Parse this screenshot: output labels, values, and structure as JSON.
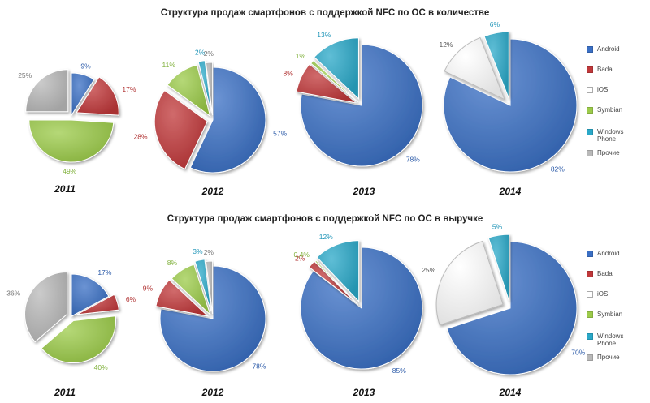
{
  "colors": {
    "Android": "#3a6fc4",
    "Bada": "#c0383a",
    "iOS": "#ffffff",
    "Symbian": "#9ccb4a",
    "Windows Phone": "#2aa8c8",
    "Прочие": "#b9b9b9"
  },
  "legend": {
    "title": "",
    "items": [
      "Android",
      "Bada",
      "iOS",
      "Symbian",
      "Windows Phone",
      "Прочие"
    ]
  },
  "chart_data": [
    {
      "type": "pie",
      "title": "Структура продаж смартфонов с поддержкой NFC по ОС в количестве",
      "pies": [
        {
          "year": "2011",
          "slices": [
            {
              "name": "Android",
              "value": 9,
              "label": "9%"
            },
            {
              "name": "Bada",
              "value": 17,
              "label": "17%"
            },
            {
              "name": "Symbian",
              "value": 49,
              "label": "49%"
            },
            {
              "name": "Прочие",
              "value": 25,
              "label": "25%"
            }
          ]
        },
        {
          "year": "2012",
          "slices": [
            {
              "name": "Android",
              "value": 57,
              "label": "57%"
            },
            {
              "name": "Bada",
              "value": 28,
              "label": "28%"
            },
            {
              "name": "Symbian",
              "value": 11,
              "label": "11%"
            },
            {
              "name": "Windows Phone",
              "value": 2,
              "label": "2%"
            },
            {
              "name": "Прочие",
              "value": 2,
              "label": "2%"
            }
          ]
        },
        {
          "year": "2013",
          "slices": [
            {
              "name": "Android",
              "value": 78,
              "label": "78%"
            },
            {
              "name": "Bada",
              "value": 8,
              "label": "8%"
            },
            {
              "name": "Symbian",
              "value": 1,
              "label": "1%"
            },
            {
              "name": "Windows Phone",
              "value": 13,
              "label": "13%"
            }
          ]
        },
        {
          "year": "2014",
          "slices": [
            {
              "name": "Android",
              "value": 82,
              "label": "82%"
            },
            {
              "name": "iOS",
              "value": 12,
              "label": "12%"
            },
            {
              "name": "Windows Phone",
              "value": 6,
              "label": "6%"
            }
          ]
        }
      ]
    },
    {
      "type": "pie",
      "title": "Структура продаж смартфонов с поддержкой NFC по ОС в выручке",
      "pies": [
        {
          "year": "2011",
          "slices": [
            {
              "name": "Android",
              "value": 17,
              "label": "17%"
            },
            {
              "name": "Bada",
              "value": 6,
              "label": "6%"
            },
            {
              "name": "Symbian",
              "value": 40,
              "label": "40%"
            },
            {
              "name": "Прочие",
              "value": 36,
              "label": "36%"
            }
          ]
        },
        {
          "year": "2012",
          "slices": [
            {
              "name": "Android",
              "value": 78,
              "label": "78%"
            },
            {
              "name": "Bada",
              "value": 9,
              "label": "9%"
            },
            {
              "name": "Symbian",
              "value": 8,
              "label": "8%"
            },
            {
              "name": "Windows Phone",
              "value": 3,
              "label": "3%"
            },
            {
              "name": "Прочие",
              "value": 2,
              "label": "2%"
            }
          ]
        },
        {
          "year": "2013",
          "slices": [
            {
              "name": "Android",
              "value": 85,
              "label": "85%"
            },
            {
              "name": "Bada",
              "value": 2,
              "label": "2%"
            },
            {
              "name": "Symbian",
              "value": 0.4,
              "label": "0,4%"
            },
            {
              "name": "Windows Phone",
              "value": 12,
              "label": "12%"
            }
          ]
        },
        {
          "year": "2014",
          "slices": [
            {
              "name": "Android",
              "value": 70,
              "label": "70%"
            },
            {
              "name": "iOS",
              "value": 25,
              "label": "25%"
            },
            {
              "name": "Windows Phone",
              "value": 5,
              "label": "5%"
            }
          ]
        }
      ]
    }
  ]
}
